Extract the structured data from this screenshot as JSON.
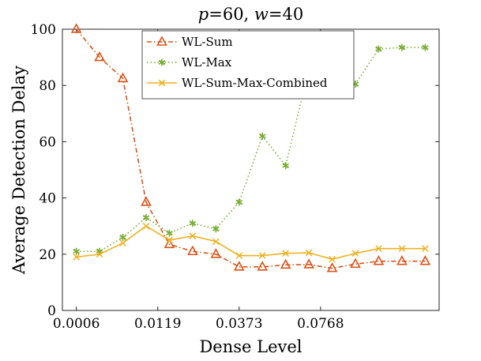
{
  "chart_data": {
    "type": "line",
    "title": "p=60, w=40",
    "title_parts": {
      "p_var": "p",
      "p_val": "=60, ",
      "w_var": "w",
      "w_val": "=40"
    },
    "xlabel": "Dense Level",
    "ylabel": "Average Detection Delay",
    "ylim": [
      0,
      100
    ],
    "yticks": [
      0,
      20,
      40,
      60,
      80,
      100
    ],
    "x": [
      1,
      2,
      3,
      4,
      5,
      6,
      7,
      8,
      9,
      10,
      11,
      12,
      13,
      14,
      15,
      16
    ],
    "xlim": [
      0.4,
      16.6
    ],
    "xticks": [
      {
        "pos": 1,
        "label": "0.0006"
      },
      {
        "pos": 4.5,
        "label": "0.0119"
      },
      {
        "pos": 8,
        "label": "0.0373"
      },
      {
        "pos": 11.5,
        "label": "0.0768"
      }
    ],
    "grid": false,
    "legend_position": "top-center",
    "series": [
      {
        "name": "WL-Sum",
        "color": "#D95319",
        "marker": "triangle",
        "linestyle": "dash-dot",
        "values": [
          100,
          90,
          82.5,
          38.5,
          23.5,
          21,
          20,
          15.5,
          15.5,
          16.2,
          16.3,
          15,
          16.5,
          17.5,
          17.5,
          17.5
        ]
      },
      {
        "name": "WL-Max",
        "color": "#77AC30",
        "marker": "asterisk",
        "linestyle": "dotted",
        "values": [
          21,
          21,
          26,
          33,
          27.5,
          31,
          29,
          38.5,
          62,
          51.5,
          86,
          86,
          80.5,
          93,
          93.5,
          93.5
        ]
      },
      {
        "name": "WL-Sum-Max-Combined",
        "color": "#EDB120",
        "marker": "x",
        "linestyle": "solid",
        "values": [
          19,
          20,
          24,
          30,
          25,
          26.5,
          24.5,
          19.5,
          19.5,
          20.3,
          20.5,
          18.2,
          20.3,
          22,
          22,
          22
        ]
      }
    ]
  }
}
